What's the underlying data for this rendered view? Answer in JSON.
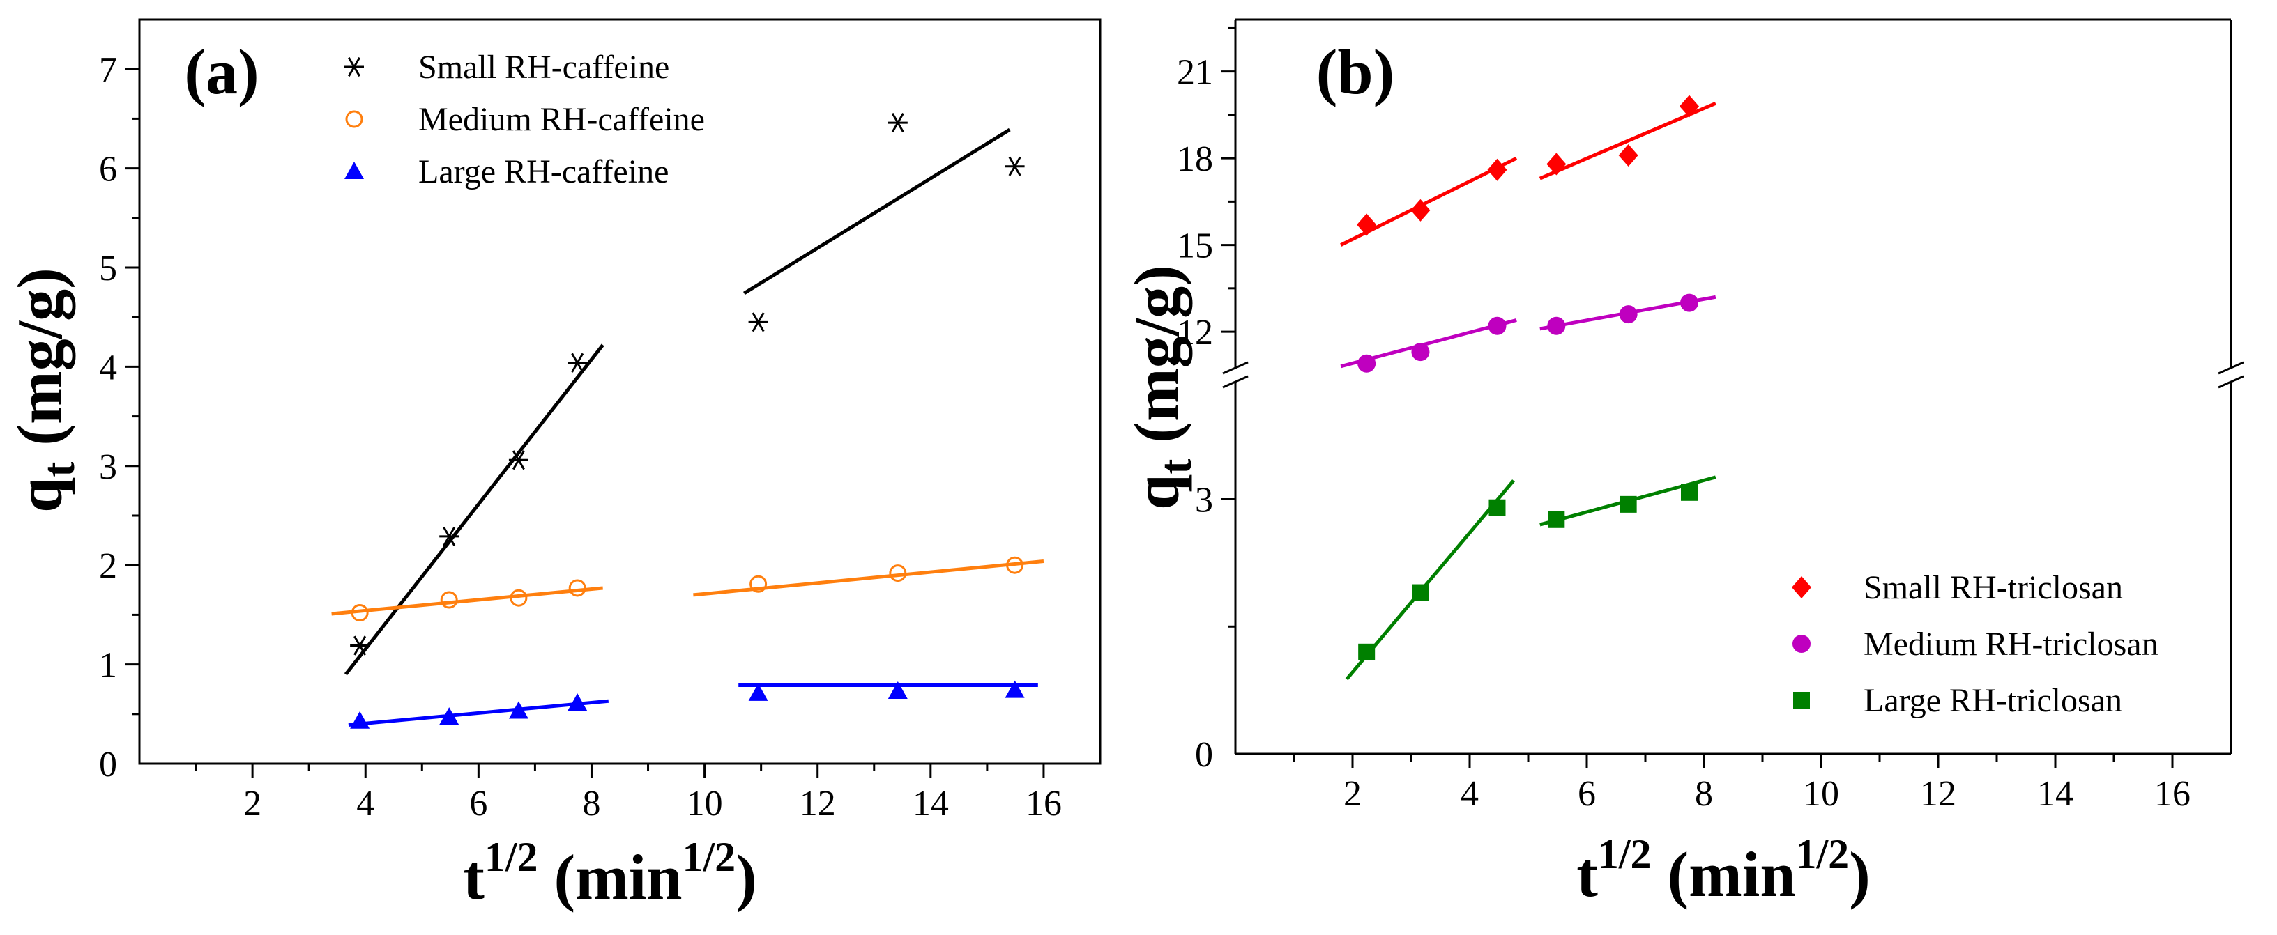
{
  "chart_data": [
    {
      "type": "scatter",
      "panel_label": "(a)",
      "xlabel": "t1/2 (min1/2)",
      "ylabel": "qt (mg/g)",
      "xlim": [
        0,
        17
      ],
      "ylim": [
        0,
        7.5
      ],
      "xticks": [
        "2",
        "4",
        "6",
        "8",
        "10",
        "12",
        "14",
        "16"
      ],
      "yticks": [
        "0",
        "1",
        "2",
        "3",
        "4",
        "5",
        "6",
        "7"
      ],
      "legend_position": "top-center",
      "series": [
        {
          "name": "Small RH-caffeine",
          "marker": "asterisk",
          "color": "#000000",
          "points": [
            [
              3.9,
              1.19
            ],
            [
              5.48,
              2.29
            ],
            [
              6.71,
              3.06
            ],
            [
              7.75,
              4.04
            ],
            [
              10.95,
              4.45
            ],
            [
              13.42,
              6.46
            ],
            [
              15.49,
              6.02
            ]
          ],
          "fit_lines": [
            [
              [
                3.65,
                0.9
              ],
              [
                8.2,
                4.22
              ]
            ],
            [
              [
                10.7,
                4.74
              ],
              [
                15.4,
                6.39
              ]
            ]
          ]
        },
        {
          "name": "Medium RH-caffeine",
          "marker": "open-circle",
          "color": "#ff7f0e",
          "points": [
            [
              3.9,
              1.52
            ],
            [
              5.48,
              1.65
            ],
            [
              6.71,
              1.67
            ],
            [
              7.75,
              1.77
            ],
            [
              10.95,
              1.81
            ],
            [
              13.42,
              1.92
            ],
            [
              15.49,
              2.0
            ]
          ],
          "fit_lines": [
            [
              [
                3.4,
                1.51
              ],
              [
                8.2,
                1.77
              ]
            ],
            [
              [
                9.8,
                1.7
              ],
              [
                16.0,
                2.04
              ]
            ]
          ]
        },
        {
          "name": "Large RH-caffeine",
          "marker": "filled-triangle",
          "color": "#0000ff",
          "points": [
            [
              3.9,
              0.43
            ],
            [
              5.48,
              0.47
            ],
            [
              6.71,
              0.53
            ],
            [
              7.75,
              0.61
            ],
            [
              10.95,
              0.71
            ],
            [
              13.42,
              0.73
            ],
            [
              15.49,
              0.74
            ]
          ],
          "fit_lines": [
            [
              [
                3.7,
                0.39
              ],
              [
                8.3,
                0.63
              ]
            ],
            [
              [
                10.6,
                0.79
              ],
              [
                15.9,
                0.79
              ]
            ]
          ]
        }
      ]
    },
    {
      "type": "scatter",
      "panel_label": "(b)",
      "xlabel": "t1/2 (min1/2)",
      "ylabel": "qt (mg/g)",
      "xlim": [
        0,
        17
      ],
      "broken_y_axis": true,
      "ylim_lower": [
        0,
        4.4
      ],
      "ylim_upper": [
        10.7,
        22.8
      ],
      "yticks_lower": [
        "0",
        "3"
      ],
      "yticks_upper": [
        "12",
        "15",
        "18",
        "21"
      ],
      "xticks": [
        "2",
        "4",
        "6",
        "8",
        "10",
        "12",
        "14",
        "16"
      ],
      "legend_position": "bottom-right",
      "series": [
        {
          "name": "Small RH-triclosan",
          "marker": "filled-diamond",
          "color": "#ff0000",
          "segment": "upper",
          "points": [
            [
              2.24,
              15.7
            ],
            [
              3.16,
              16.2
            ],
            [
              4.47,
              17.6
            ],
            [
              5.48,
              17.8
            ],
            [
              6.71,
              18.1
            ],
            [
              7.75,
              19.8
            ]
          ],
          "fit_lines": [
            [
              [
                1.8,
                15.0
              ],
              [
                4.8,
                18.0
              ]
            ],
            [
              [
                5.2,
                17.3
              ],
              [
                8.2,
                19.9
              ]
            ]
          ]
        },
        {
          "name": "Medium RH-triclosan",
          "marker": "filled-circle",
          "color": "#bf00bf",
          "segment": "upper",
          "points": [
            [
              2.24,
              10.9
            ],
            [
              3.16,
              11.3
            ],
            [
              4.47,
              12.2
            ],
            [
              5.48,
              12.2
            ],
            [
              6.71,
              12.6
            ],
            [
              7.75,
              13.0
            ]
          ],
          "fit_lines": [
            [
              [
                1.8,
                10.8
              ],
              [
                4.8,
                12.4
              ]
            ],
            [
              [
                5.2,
                12.1
              ],
              [
                8.2,
                13.2
              ]
            ]
          ]
        },
        {
          "name": "Large RH-triclosan",
          "marker": "filled-square",
          "color": "#008000",
          "segment": "lower",
          "points": [
            [
              2.24,
              1.2
            ],
            [
              3.16,
              1.9
            ],
            [
              4.47,
              2.9
            ],
            [
              5.48,
              2.76
            ],
            [
              6.71,
              2.94
            ],
            [
              7.75,
              3.08
            ]
          ],
          "fit_lines": [
            [
              [
                1.9,
                0.88
              ],
              [
                4.75,
                3.22
              ]
            ],
            [
              [
                5.2,
                2.7
              ],
              [
                8.2,
                3.26
              ]
            ]
          ]
        }
      ]
    }
  ]
}
